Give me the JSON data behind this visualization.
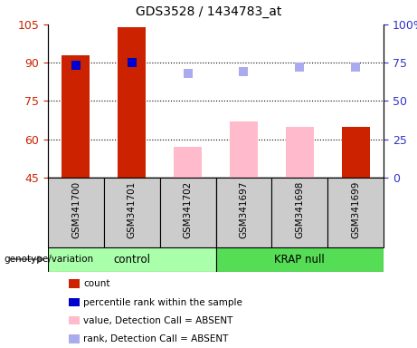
{
  "title": "GDS3528 / 1434783_at",
  "samples": [
    "GSM341700",
    "GSM341701",
    "GSM341702",
    "GSM341697",
    "GSM341698",
    "GSM341699"
  ],
  "count_bars": {
    "GSM341700": 93,
    "GSM341701": 104,
    "GSM341699": 65
  },
  "absent_value_bars": {
    "GSM341702": 57,
    "GSM341697": 67,
    "GSM341698": 65
  },
  "percentile_rank_present": {
    "GSM341700": 73,
    "GSM341701": 75
  },
  "percentile_rank_absent": {
    "GSM341702": 68,
    "GSM341697": 69,
    "GSM341698": 72,
    "GSM341699": 72
  },
  "ylim_left": [
    45,
    105
  ],
  "ylim_right": [
    0,
    100
  ],
  "yticks_left": [
    45,
    60,
    75,
    90,
    105
  ],
  "yticks_right": [
    0,
    25,
    50,
    75,
    100
  ],
  "left_tick_color": "#cc2200",
  "right_tick_color": "#3333cc",
  "bar_width": 0.5,
  "count_bar_color": "#cc2200",
  "absent_bar_color": "#ffbbcc",
  "present_dot_color": "#0000cc",
  "absent_dot_color": "#aaaaee",
  "group_bg_color": "#cccccc",
  "control_color": "#aaffaa",
  "krap_color": "#55dd55",
  "legend_items": [
    {
      "label": "count",
      "color": "#cc2200"
    },
    {
      "label": "percentile rank within the sample",
      "color": "#0000cc"
    },
    {
      "label": "value, Detection Call = ABSENT",
      "color": "#ffbbcc"
    },
    {
      "label": "rank, Detection Call = ABSENT",
      "color": "#aaaaee"
    }
  ],
  "dot_size": 55,
  "genotype_label": "genotype/variation"
}
